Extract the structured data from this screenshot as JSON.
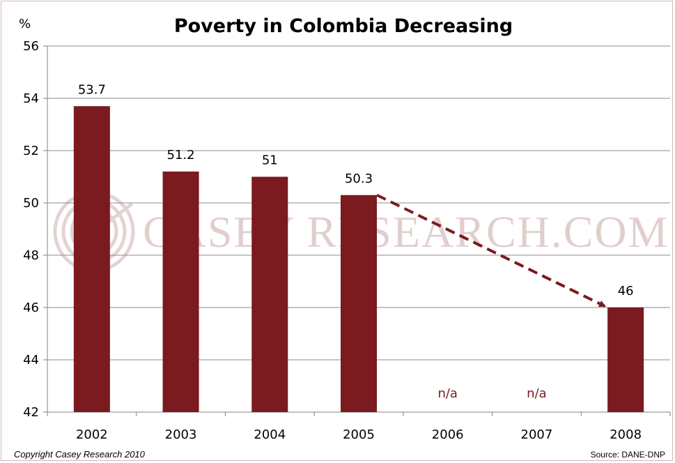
{
  "chart_data": {
    "type": "bar",
    "title": "Poverty in Colombia Decreasing",
    "ylabel": "%",
    "xlabel": "",
    "ylim": [
      42,
      56
    ],
    "yticks": [
      42,
      44,
      46,
      48,
      50,
      52,
      54,
      56
    ],
    "grid": true,
    "legend": "none",
    "categories": [
      "2002",
      "2003",
      "2004",
      "2005",
      "2006",
      "2007",
      "2008"
    ],
    "values": [
      53.7,
      51.2,
      51,
      50.3,
      null,
      null,
      46
    ],
    "data_labels": [
      "53.7",
      "51.2",
      "51",
      "50.3",
      "n/a",
      "n/a",
      "46"
    ],
    "bar_color": "#7b1a1f",
    "annotations": [
      {
        "type": "dashed-arrow",
        "from": "2005",
        "to": "2008",
        "color": "#7b1a1f"
      }
    ]
  },
  "watermark": "CASEY RESEARCH.COM",
  "footer": {
    "copyright": "Copyright Casey Research 2010",
    "source": "Source: DANE-DNP"
  }
}
